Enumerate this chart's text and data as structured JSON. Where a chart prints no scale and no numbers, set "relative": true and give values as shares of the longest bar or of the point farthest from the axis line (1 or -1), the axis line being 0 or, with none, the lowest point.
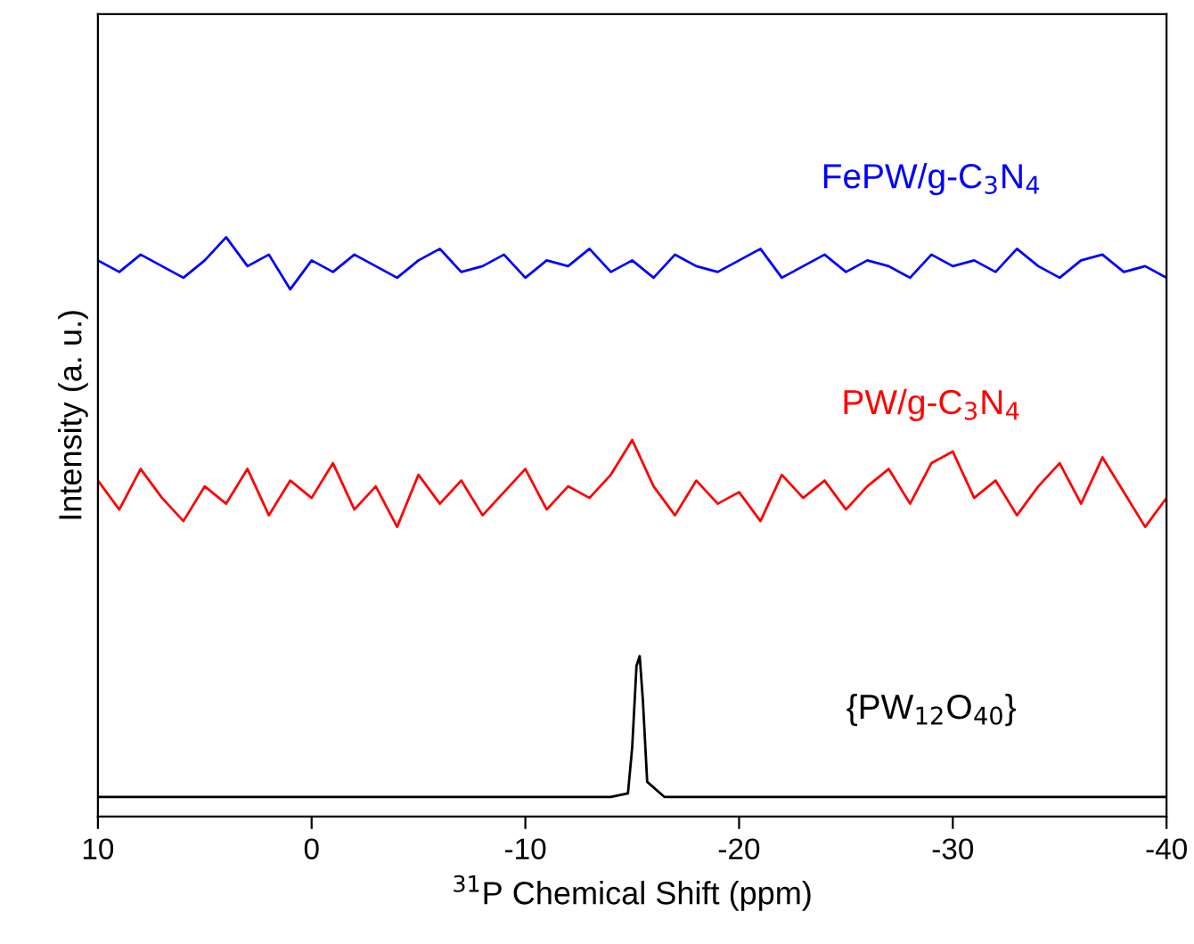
{
  "chart_data": {
    "type": "line",
    "relative": true,
    "xlabel": "$^{31}$P Chemical Shift (ppm)",
    "ylabel": "Intensity (a. u.)",
    "xlim": [
      10,
      -40
    ],
    "xticks": [
      10,
      0,
      -10,
      -20,
      -30,
      -40
    ],
    "grid": false,
    "legend": false,
    "marker": "none",
    "line_style": "solid",
    "series": [
      {
        "name": "FePW/g-C$_{3}$N$_{4}$",
        "color": "#0000ff",
        "x": [
          10,
          9,
          8,
          7,
          6,
          5,
          4,
          3,
          2,
          1,
          0,
          -1,
          -2,
          -3,
          -4,
          -5,
          -6,
          -7,
          -8,
          -9,
          -10,
          -11,
          -12,
          -13,
          -14,
          -15,
          -16,
          -17,
          -18,
          -19,
          -20,
          -21,
          -22,
          -23,
          -24,
          -25,
          -26,
          -27,
          -28,
          -29,
          -30,
          -31,
          -32,
          -33,
          -34,
          -35,
          -36,
          -37,
          -38,
          -39,
          -40
        ],
        "values": [
          0.96,
          0.94,
          0.97,
          0.95,
          0.93,
          0.96,
          1.0,
          0.95,
          0.97,
          0.91,
          0.96,
          0.94,
          0.97,
          0.95,
          0.93,
          0.96,
          0.98,
          0.94,
          0.95,
          0.97,
          0.93,
          0.96,
          0.95,
          0.98,
          0.94,
          0.96,
          0.93,
          0.97,
          0.95,
          0.94,
          0.96,
          0.98,
          0.93,
          0.95,
          0.97,
          0.94,
          0.96,
          0.95,
          0.93,
          0.97,
          0.95,
          0.96,
          0.94,
          0.98,
          0.95,
          0.93,
          0.96,
          0.97,
          0.94,
          0.95,
          0.93
        ]
      },
      {
        "name": "PW/g-C$_{3}$N$_{4}$",
        "color": "#ff0000",
        "x": [
          10,
          9,
          8,
          7,
          6,
          5,
          4,
          3,
          2,
          1,
          0,
          -1,
          -2,
          -3,
          -4,
          -5,
          -6,
          -7,
          -8,
          -9,
          -10,
          -11,
          -12,
          -13,
          -14,
          -15,
          -16,
          -17,
          -18,
          -19,
          -20,
          -21,
          -22,
          -23,
          -24,
          -25,
          -26,
          -27,
          -28,
          -29,
          -30,
          -31,
          -32,
          -33,
          -34,
          -35,
          -36,
          -37,
          -38,
          -39,
          -40
        ],
        "values": [
          0.58,
          0.53,
          0.6,
          0.55,
          0.51,
          0.57,
          0.54,
          0.6,
          0.52,
          0.58,
          0.55,
          0.61,
          0.53,
          0.57,
          0.5,
          0.59,
          0.54,
          0.58,
          0.52,
          0.56,
          0.6,
          0.53,
          0.57,
          0.55,
          0.59,
          0.65,
          0.57,
          0.52,
          0.58,
          0.54,
          0.56,
          0.51,
          0.59,
          0.55,
          0.58,
          0.53,
          0.57,
          0.6,
          0.54,
          0.61,
          0.63,
          0.55,
          0.58,
          0.52,
          0.57,
          0.61,
          0.54,
          0.62,
          0.56,
          0.5,
          0.55
        ]
      },
      {
        "name": "{PW$_{12}$O$_{40}$}",
        "color": "#000000",
        "x": [
          10,
          0,
          -10,
          -14,
          -14.8,
          -15.0,
          -15.2,
          -15.35,
          -15.5,
          -15.7,
          -16.5,
          -25,
          -40
        ],
        "values": [
          0.034,
          0.034,
          0.034,
          0.034,
          0.04,
          0.12,
          0.26,
          0.277,
          0.2,
          0.06,
          0.034,
          0.034,
          0.034
        ]
      }
    ]
  }
}
